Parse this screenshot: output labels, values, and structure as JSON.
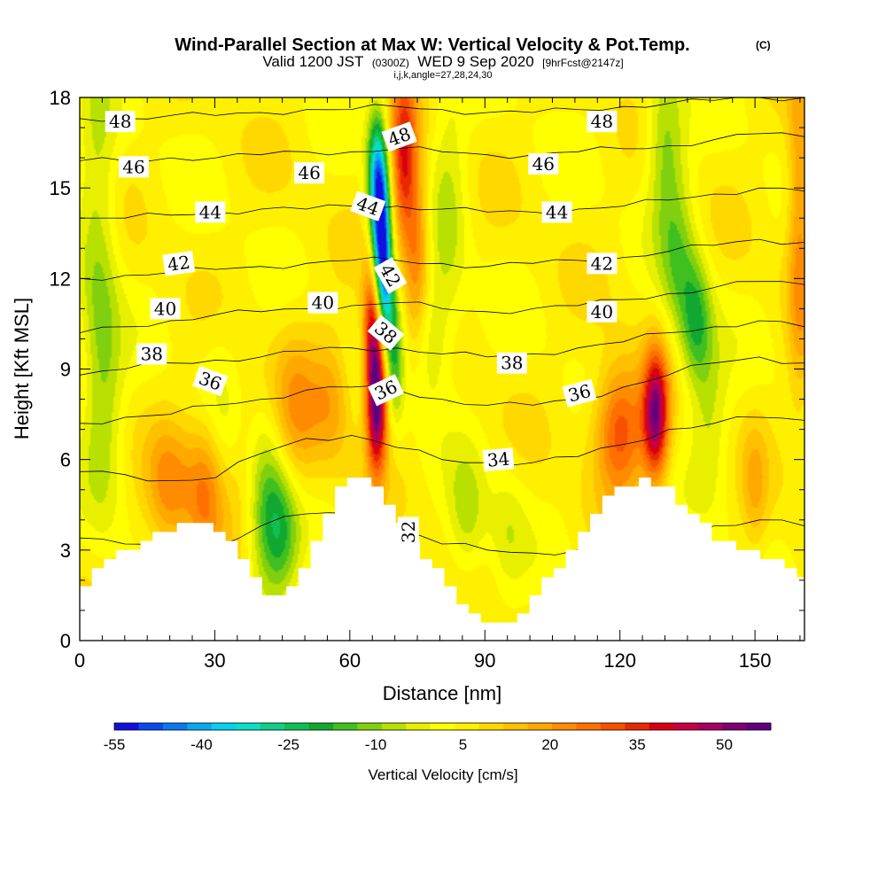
{
  "header": {
    "title": "Wind-Parallel Section at Max W: Vertical Velocity & Pot.Temp.",
    "title_mark": "(C)",
    "sub_valid": "Valid 1200 JST",
    "sub_utc": "(0300Z)",
    "sub_date": "WED 9 Sep 2020",
    "sub_fcst": "[9hrFcst@2147z]",
    "indices": "i,j,k,angle=27,28,24,30"
  },
  "chart_data": {
    "type": "heatmap",
    "title": "Wind-Parallel Section at Max W: Vertical Velocity & Pot.Temp.",
    "xlabel": "Distance [nm]",
    "ylabel": "Height [Kft MSL]",
    "xlim": [
      0,
      161
    ],
    "ylim": [
      0,
      18
    ],
    "x_ticks": [
      0,
      30,
      60,
      90,
      120,
      150
    ],
    "y_ticks": [
      0,
      3,
      6,
      9,
      12,
      15,
      18
    ],
    "grid": false,
    "colorbar": {
      "label": "Vertical Velocity [cm/s]",
      "tick_labels": [
        "-55",
        "-40",
        "-25",
        "-10",
        "5",
        "20",
        "35",
        "50"
      ],
      "tick_values": [
        -55,
        -40,
        -25,
        -10,
        5,
        20,
        35,
        50
      ],
      "range": [
        -55,
        58
      ],
      "colors": [
        "#1010e0",
        "#0a48f0",
        "#0a78f0",
        "#08a8f0",
        "#08d0f0",
        "#08e0c8",
        "#10d088",
        "#10c050",
        "#10a830",
        "#40c020",
        "#80d010",
        "#b8e000",
        "#e8f000",
        "#ffff00",
        "#fff000",
        "#ffd800",
        "#ffc000",
        "#ffa800",
        "#ff8c00",
        "#ff7000",
        "#f85000",
        "#e82800",
        "#d80010",
        "#c80040",
        "#a80060",
        "#800070",
        "#600080"
      ]
    },
    "terrain_kft": [
      [
        0,
        1.6
      ],
      [
        5,
        2.5
      ],
      [
        10,
        3.0
      ],
      [
        15,
        3.3
      ],
      [
        20,
        3.7
      ],
      [
        25,
        3.9
      ],
      [
        30,
        3.8
      ],
      [
        35,
        3.0
      ],
      [
        40,
        1.8
      ],
      [
        44,
        1.3
      ],
      [
        48,
        1.9
      ],
      [
        52,
        3.2
      ],
      [
        56,
        4.5
      ],
      [
        60,
        5.4
      ],
      [
        65,
        5.5
      ],
      [
        69,
        4.6
      ],
      [
        74,
        3.2
      ],
      [
        80,
        2.2
      ],
      [
        86,
        1.0
      ],
      [
        91,
        0.4
      ],
      [
        97,
        0.7
      ],
      [
        103,
        1.8
      ],
      [
        109,
        3.0
      ],
      [
        115,
        4.4
      ],
      [
        120,
        5.2
      ],
      [
        127,
        5.3
      ],
      [
        132,
        4.9
      ],
      [
        138,
        3.9
      ],
      [
        143,
        3.3
      ],
      [
        150,
        2.9
      ],
      [
        156,
        2.6
      ],
      [
        161,
        2.2
      ]
    ],
    "vertical_velocity_features": [
      {
        "x": 4,
        "z": 13.0,
        "w": -12,
        "sx": 3,
        "sz": 5
      },
      {
        "x": 6,
        "z": 8.0,
        "w": -8,
        "sx": 3,
        "sz": 3
      },
      {
        "x": 20,
        "z": 5.0,
        "w": 16,
        "sx": 3.5,
        "sz": 1.5
      },
      {
        "x": 28,
        "z": 5.0,
        "w": 20,
        "sx": 3,
        "sz": 1.8
      },
      {
        "x": 31,
        "z": 8.0,
        "w": -6,
        "sx": 4,
        "sz": 2
      },
      {
        "x": 37,
        "z": 6.0,
        "w": 10,
        "sx": 3,
        "sz": 2
      },
      {
        "x": 41,
        "z": 4.5,
        "w": -20,
        "sx": 3.5,
        "sz": 2.2
      },
      {
        "x": 45,
        "z": 3.5,
        "w": -16,
        "sx": 3,
        "sz": 1.5
      },
      {
        "x": 48,
        "z": 7.5,
        "w": 14,
        "sx": 4,
        "sz": 2
      },
      {
        "x": 56,
        "z": 8.0,
        "w": 12,
        "sx": 3,
        "sz": 1.5
      },
      {
        "x": 66,
        "z": 8.0,
        "w": 55,
        "sx": 1.6,
        "sz": 1.6
      },
      {
        "x": 65,
        "z": 10.5,
        "w": 30,
        "sx": 1.5,
        "sz": 1.4
      },
      {
        "x": 67,
        "z": 13.5,
        "w": -52,
        "sx": 1.4,
        "sz": 1.6
      },
      {
        "x": 68,
        "z": 11.5,
        "w": -30,
        "sx": 1.4,
        "sz": 1.4
      },
      {
        "x": 66,
        "z": 15.5,
        "w": -35,
        "sx": 1.5,
        "sz": 1.5
      },
      {
        "x": 70,
        "z": 9.5,
        "w": -20,
        "sx": 1.5,
        "sz": 1.5
      },
      {
        "x": 72,
        "z": 16.0,
        "w": 32,
        "sx": 2,
        "sz": 2
      },
      {
        "x": 75,
        "z": 13.0,
        "w": 20,
        "sx": 2,
        "sz": 2
      },
      {
        "x": 78,
        "z": 10.0,
        "w": -12,
        "sx": 3,
        "sz": 1.5
      },
      {
        "x": 82,
        "z": 14.5,
        "w": -10,
        "sx": 3,
        "sz": 3
      },
      {
        "x": 86,
        "z": 4.0,
        "w": -12,
        "sx": 3,
        "sz": 1.5
      },
      {
        "x": 95,
        "z": 3.5,
        "w": -8,
        "sx": 3,
        "sz": 1.5
      },
      {
        "x": 120,
        "z": 7.0,
        "w": 28,
        "sx": 4,
        "sz": 1.5
      },
      {
        "x": 128,
        "z": 7.5,
        "w": 45,
        "sx": 2,
        "sz": 1.5
      },
      {
        "x": 130,
        "z": 16.5,
        "w": -16,
        "sx": 3,
        "sz": 2
      },
      {
        "x": 133,
        "z": 12.5,
        "w": -14,
        "sx": 3,
        "sz": 2
      },
      {
        "x": 137,
        "z": 10.5,
        "w": -20,
        "sx": 2.5,
        "sz": 1.5
      },
      {
        "x": 140,
        "z": 7.5,
        "w": -10,
        "sx": 3,
        "sz": 2
      },
      {
        "x": 160,
        "z": 14.0,
        "w": 18,
        "sx": 2,
        "sz": 4
      },
      {
        "x": 150,
        "z": 5.0,
        "w": 10,
        "sx": 2,
        "sz": 1.5
      }
    ],
    "theta_contours": [
      {
        "value": 32,
        "z": [
          3.4,
          3.2,
          3.0,
          3.1,
          3.8,
          4.2,
          4.2,
          3.8,
          3.2,
          3.0,
          2.9,
          3.0,
          3.2,
          3.5,
          3.8,
          4.0,
          3.8
        ]
      },
      {
        "value": 34,
        "z": [
          5.6,
          5.5,
          5.3,
          5.4,
          6.2,
          6.7,
          6.8,
          6.4,
          6.0,
          5.9,
          5.9,
          6.1,
          6.5,
          7.0,
          7.2,
          7.4,
          7.3
        ]
      },
      {
        "value": 36,
        "z": [
          7.2,
          7.4,
          7.5,
          7.8,
          8.0,
          8.3,
          8.4,
          8.3,
          8.0,
          7.8,
          7.8,
          8.0,
          8.4,
          8.8,
          9.2,
          9.4,
          9.2
        ]
      },
      {
        "value": 38,
        "z": [
          8.8,
          9.0,
          9.2,
          9.3,
          9.4,
          9.6,
          9.7,
          9.7,
          9.5,
          9.4,
          9.5,
          9.7,
          9.9,
          10.2,
          10.4,
          10.6,
          10.4
        ]
      },
      {
        "value": 40,
        "z": [
          10.2,
          10.4,
          10.6,
          10.8,
          10.9,
          11.0,
          11.1,
          11.2,
          11.0,
          10.9,
          11.0,
          11.1,
          11.3,
          11.5,
          11.7,
          11.9,
          11.8
        ]
      },
      {
        "value": 42,
        "z": [
          12.0,
          12.1,
          12.2,
          12.3,
          12.4,
          12.5,
          12.6,
          12.6,
          12.5,
          12.4,
          12.5,
          12.6,
          12.7,
          12.9,
          13.1,
          13.3,
          13.2
        ]
      },
      {
        "value": 44,
        "z": [
          14.0,
          14.0,
          14.1,
          14.2,
          14.3,
          14.3,
          14.4,
          14.4,
          14.3,
          14.2,
          14.2,
          14.3,
          14.4,
          14.6,
          14.8,
          15.0,
          14.9
        ]
      },
      {
        "value": 46,
        "z": [
          15.9,
          15.9,
          16.0,
          16.0,
          16.1,
          16.2,
          16.2,
          16.3,
          16.2,
          16.1,
          16.1,
          16.2,
          16.3,
          16.4,
          16.6,
          16.8,
          16.7
        ]
      },
      {
        "value": 48,
        "z": [
          17.3,
          17.3,
          17.4,
          17.4,
          17.5,
          17.6,
          17.6,
          17.7,
          17.6,
          17.5,
          17.5,
          17.6,
          17.7,
          17.8,
          17.9,
          18.0,
          18.0
        ]
      }
    ],
    "contour_labels": [
      {
        "text": "48",
        "x": 9,
        "z": 17.2,
        "rot": 0
      },
      {
        "text": "46",
        "x": 12,
        "z": 15.7,
        "rot": 0
      },
      {
        "text": "44",
        "x": 29,
        "z": 14.2,
        "rot": 0
      },
      {
        "text": "42",
        "x": 22,
        "z": 12.5,
        "rot": -8
      },
      {
        "text": "40",
        "x": 19,
        "z": 11.0,
        "rot": 0
      },
      {
        "text": "38",
        "x": 16,
        "z": 9.5,
        "rot": 0
      },
      {
        "text": "36",
        "x": 29,
        "z": 8.6,
        "rot": 20
      },
      {
        "text": "46",
        "x": 51,
        "z": 15.5,
        "rot": 0
      },
      {
        "text": "40",
        "x": 54,
        "z": 11.2,
        "rot": 0
      },
      {
        "text": "48",
        "x": 71,
        "z": 16.7,
        "rot": -20
      },
      {
        "text": "44",
        "x": 64,
        "z": 14.4,
        "rot": 20
      },
      {
        "text": "42",
        "x": 69,
        "z": 12.1,
        "rot": 60
      },
      {
        "text": "38",
        "x": 68,
        "z": 10.2,
        "rot": 40
      },
      {
        "text": "36",
        "x": 68,
        "z": 8.3,
        "rot": -25
      },
      {
        "text": "38",
        "x": 96,
        "z": 9.2,
        "rot": 0
      },
      {
        "text": "34",
        "x": 93,
        "z": 6.0,
        "rot": -5
      },
      {
        "text": "32",
        "x": 73,
        "z": 3.6,
        "rot": -90
      },
      {
        "text": "48",
        "x": 116,
        "z": 17.2,
        "rot": 0
      },
      {
        "text": "46",
        "x": 103,
        "z": 15.8,
        "rot": 0
      },
      {
        "text": "44",
        "x": 106,
        "z": 14.2,
        "rot": 0
      },
      {
        "text": "42",
        "x": 116,
        "z": 12.5,
        "rot": 0
      },
      {
        "text": "40",
        "x": 116,
        "z": 10.9,
        "rot": 0
      },
      {
        "text": "36",
        "x": 111,
        "z": 8.2,
        "rot": -15
      }
    ]
  }
}
